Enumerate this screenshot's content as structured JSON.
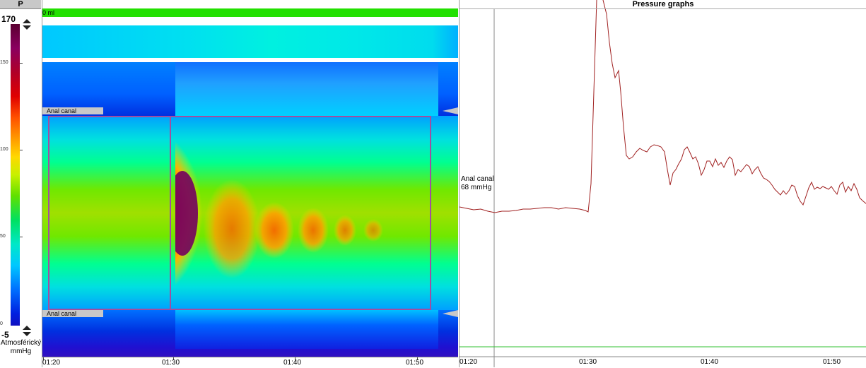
{
  "scale": {
    "tab_label": "P",
    "max_value": "170",
    "min_value": "-5",
    "ticks": [
      "150",
      "100",
      "50",
      "0"
    ],
    "unit_line1": "Atmosférický",
    "unit_line2": "mmHg"
  },
  "spatio": {
    "volume_label": "0 ml",
    "canal_label_top": "Anal canal",
    "canal_label_bottom": "Anal canal",
    "time_ticks": [
      "01:20",
      "01:30",
      "01:40",
      "01:50"
    ]
  },
  "graph": {
    "title": "Pressure graphs",
    "channel_name": "Anal canal",
    "channel_value": "68 mmHg",
    "time_ticks": [
      "01:20",
      "01:30",
      "01:40",
      "01:50"
    ]
  },
  "colors": {
    "trace": "#a02020",
    "baseline": "#30c030",
    "selection": "#a04fa0"
  }
}
